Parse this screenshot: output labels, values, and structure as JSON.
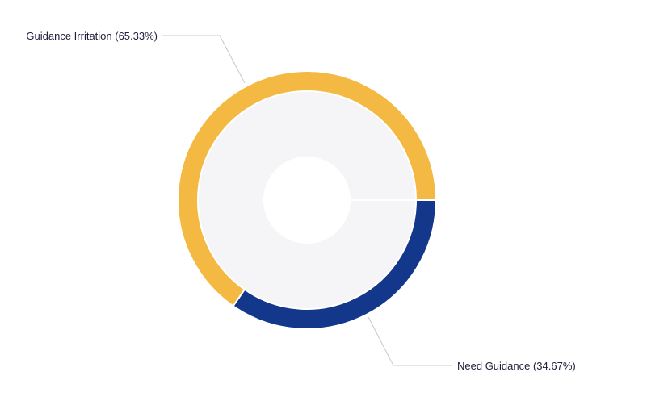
{
  "chart_data": {
    "type": "pie",
    "style": "donut",
    "slices": [
      {
        "label": "Guidance Irritation (65.33%)",
        "value": 65.33,
        "color": "#f4b942"
      },
      {
        "label": "Need Guidance (34.67%)",
        "value": 34.67,
        "color": "#13378a"
      }
    ],
    "inner_fill_color": "#f5f5f7",
    "leader_line_color": "#c8c8cc",
    "label_color": "#1f1d3a"
  }
}
